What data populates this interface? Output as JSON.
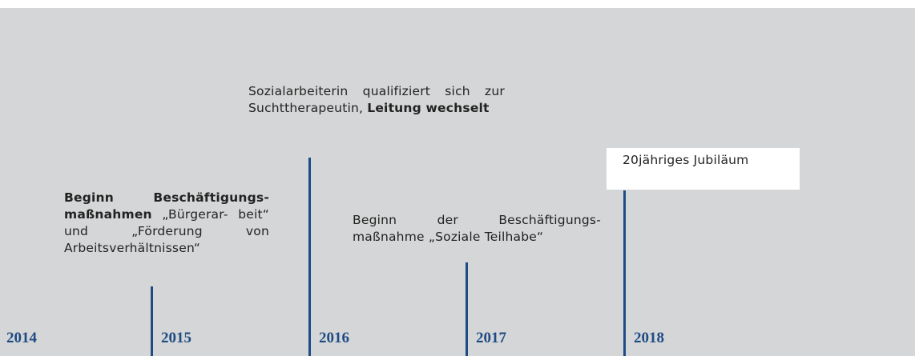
{
  "years": [
    "2014",
    "2015",
    "2016",
    "2017",
    "2018"
  ],
  "events": [
    {
      "segments": [
        {
          "text": "Beginn Beschäftigungs- maßnahmen",
          "bold": true
        },
        {
          "text": " „Bürgerar- beit“ und „Förderung von Arbeitsverhältnissen“",
          "bold": false
        }
      ]
    },
    {
      "segments": [
        {
          "text": "Sozialarbeiterin qualifiziert sich zur Suchttherapeutin, ",
          "bold": false
        },
        {
          "text": "Leitung wechselt",
          "bold": true
        }
      ]
    },
    {
      "segments": [
        {
          "text": "Beginn der Beschäftigungs- maßnahme „Soziale Teilhabe“",
          "bold": false
        }
      ]
    },
    {
      "segments": [
        {
          "text": "20jähriges Jubiläum",
          "bold": false
        }
      ]
    }
  ]
}
